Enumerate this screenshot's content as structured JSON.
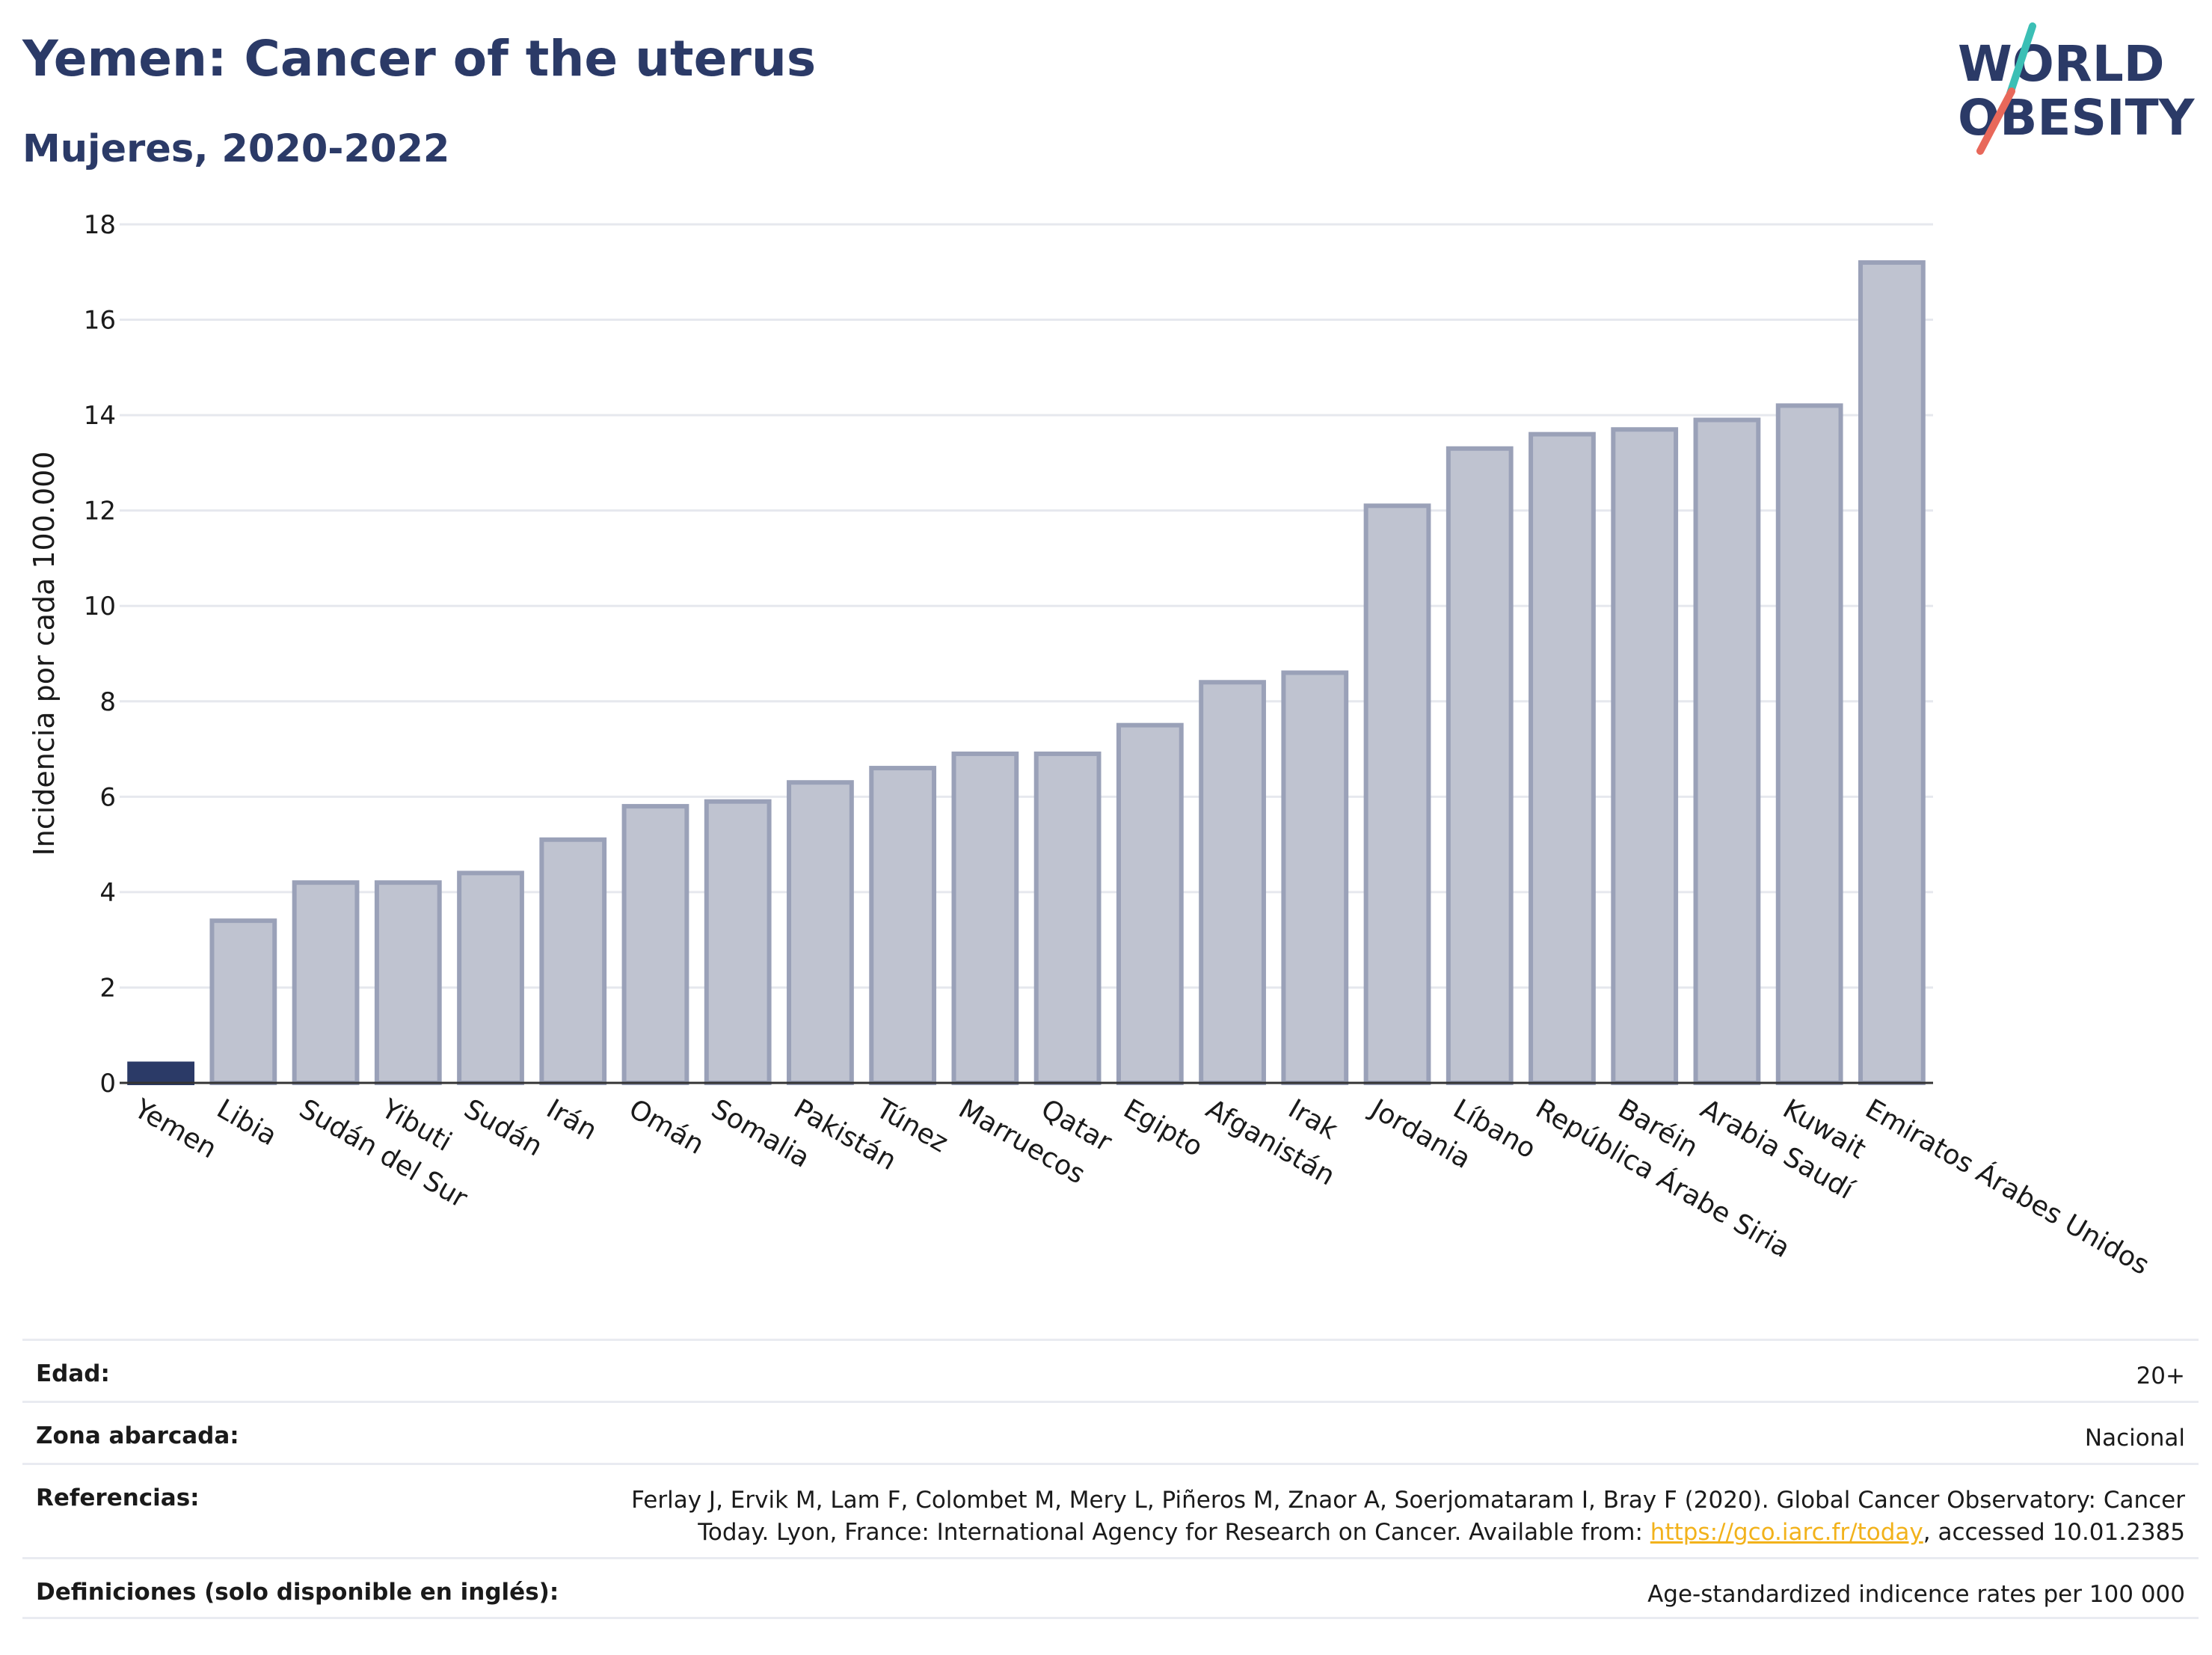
{
  "header": {
    "title": "Yemen: Cancer of the uterus",
    "subtitle": "Mujeres, 2020-2022"
  },
  "logo": {
    "line1": "WORLD",
    "line2": "OBESITY"
  },
  "colors": {
    "highlight": "#2b3a67",
    "bar_fill": "#bfc3d0",
    "bar_stroke": "#9aa1b8",
    "grid": "#e6e8ee",
    "title": "#2b3a67",
    "link": "#f2b21b",
    "logo_teal": "#3bbfb5",
    "logo_coral": "#e8685a"
  },
  "chart_data": {
    "type": "bar",
    "ylabel": "Incidencia por cada 100.000",
    "xlabel": "",
    "ylim": [
      0,
      18
    ],
    "yticks": [
      0,
      2,
      4,
      6,
      8,
      10,
      12,
      14,
      16,
      18
    ],
    "grid": true,
    "highlight_category": "Yemen",
    "categories": [
      "Yemen",
      "Libia",
      "Sudán del Sur",
      "Yibuti",
      "Sudán",
      "Irán",
      "Omán",
      "Somalia",
      "Pakistán",
      "Túnez",
      "Marruecos",
      "Qatar",
      "Egipto",
      "Afganistán",
      "Irak",
      "Jordania",
      "Líbano",
      "República Árabe Siria",
      "Baréin",
      "Arabia Saudí",
      "Kuwait",
      "Emiratos Árabes Unidos"
    ],
    "values": [
      0.4,
      3.4,
      4.2,
      4.2,
      4.4,
      5.1,
      5.8,
      5.9,
      6.3,
      6.6,
      6.9,
      6.9,
      7.5,
      8.4,
      8.6,
      12.1,
      13.3,
      13.6,
      13.7,
      13.9,
      14.2,
      17.2
    ]
  },
  "details": {
    "age_label": "Edad:",
    "age_value": "20+",
    "area_label": "Zona abarcada:",
    "area_value": "Nacional",
    "ref_label": "Referencias:",
    "ref_text_1": "Ferlay J, Ervik M, Lam F, Colombet M, Mery L, Piñeros M, Znaor A, Soerjomataram I, Bray F (2020). Global Cancer Observatory: Cancer",
    "ref_text_2": "Today. Lyon, France: International Agency for Research on Cancer. Available from: ",
    "ref_link": "https://gco.iarc.fr/today",
    "ref_text_3": ", accessed 10.01.2385",
    "def_label": "Definiciones (solo disponible en inglés):",
    "def_value": "Age-standardized indicence rates per 100 000"
  }
}
